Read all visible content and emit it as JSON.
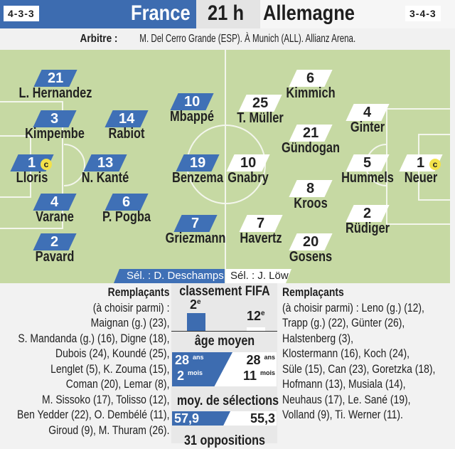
{
  "header": {
    "home_formation": "4-3-3",
    "home_team": "France",
    "time": "21 h",
    "away_team": "Allemagne",
    "away_formation": "3-4-3"
  },
  "referee": {
    "label": "Arbitre :",
    "text": "M. Del Cerro Grande (ESP). À Munich (ALL). Allianz Arena."
  },
  "colors": {
    "france_blue": "#3d6cb0",
    "pitch": "#c6d9a3",
    "captain": "#f3e24a"
  },
  "home_players": [
    {
      "num": "21",
      "name": "L. Hernandez"
    },
    {
      "num": "3",
      "name": "Kimpembe"
    },
    {
      "num": "14",
      "name": "Rabiot"
    },
    {
      "num": "1",
      "name": "Lloris",
      "captain": "c"
    },
    {
      "num": "13",
      "name": "N. Kanté"
    },
    {
      "num": "10",
      "name": "Mbappé"
    },
    {
      "num": "19",
      "name": "Benzema"
    },
    {
      "num": "4",
      "name": "Varane"
    },
    {
      "num": "6",
      "name": "P. Pogba"
    },
    {
      "num": "2",
      "name": "Pavard"
    },
    {
      "num": "7",
      "name": "Griezmann"
    }
  ],
  "away_players": [
    {
      "num": "6",
      "name": "Kimmich"
    },
    {
      "num": "25",
      "name": "T. Müller"
    },
    {
      "num": "4",
      "name": "Ginter"
    },
    {
      "num": "21",
      "name": "Gündogan"
    },
    {
      "num": "1",
      "name": "Neuer",
      "captain": "c"
    },
    {
      "num": "10",
      "name": "Gnabry"
    },
    {
      "num": "5",
      "name": "Hummels"
    },
    {
      "num": "8",
      "name": "Kroos"
    },
    {
      "num": "2",
      "name": "Rüdiger"
    },
    {
      "num": "7",
      "name": "Havertz"
    },
    {
      "num": "20",
      "name": "Gosens"
    }
  ],
  "coaches": {
    "home": "Sél. : D. Deschamps",
    "away": "Sél. : J. Löw"
  },
  "home_subs": {
    "title": "Remplaçants",
    "lines": [
      "(à choisir parmi) :",
      "Maignan (g.) (23),",
      "S. Mandanda (g.) (16), Digne (18),",
      "Dubois (24), Koundé (25),",
      "Lenglet (5), K. Zouma (15),",
      "Coman (20), Lemar (8),",
      "M. Sissoko (17), Tolisso (12),",
      "Ben Yedder (22), O. Dembélé (11),",
      "Giroud (9), M. Thuram (26)."
    ]
  },
  "away_subs": {
    "title": "Remplaçants",
    "lines": [
      "(à choisir parmi) : Leno (g.) (12),",
      "Trapp (g.) (22), Günter (26),",
      "Halstenberg (3),",
      "Klostermann (16), Koch (24),",
      "Süle (15), Can (23), Goretzka (18),",
      "Hofmann (13), Musiala (14),",
      "Neuhaus (17), Le. Sané (19),",
      "Volland (9), Ti. Werner (11)."
    ]
  },
  "stats": {
    "fifa": {
      "title": "classement FIFA",
      "home": "2",
      "away": "12",
      "suffix": "e"
    },
    "age": {
      "title": "âge moyen",
      "home_years": "28",
      "home_months": "2",
      "away_years": "28",
      "away_months": "11",
      "years_unit": "ans",
      "months_unit": "mois"
    },
    "caps": {
      "title": "moy. de sélections",
      "home": "57,9",
      "away": "55,3"
    },
    "meetings": {
      "title": "31 oppositions"
    }
  }
}
